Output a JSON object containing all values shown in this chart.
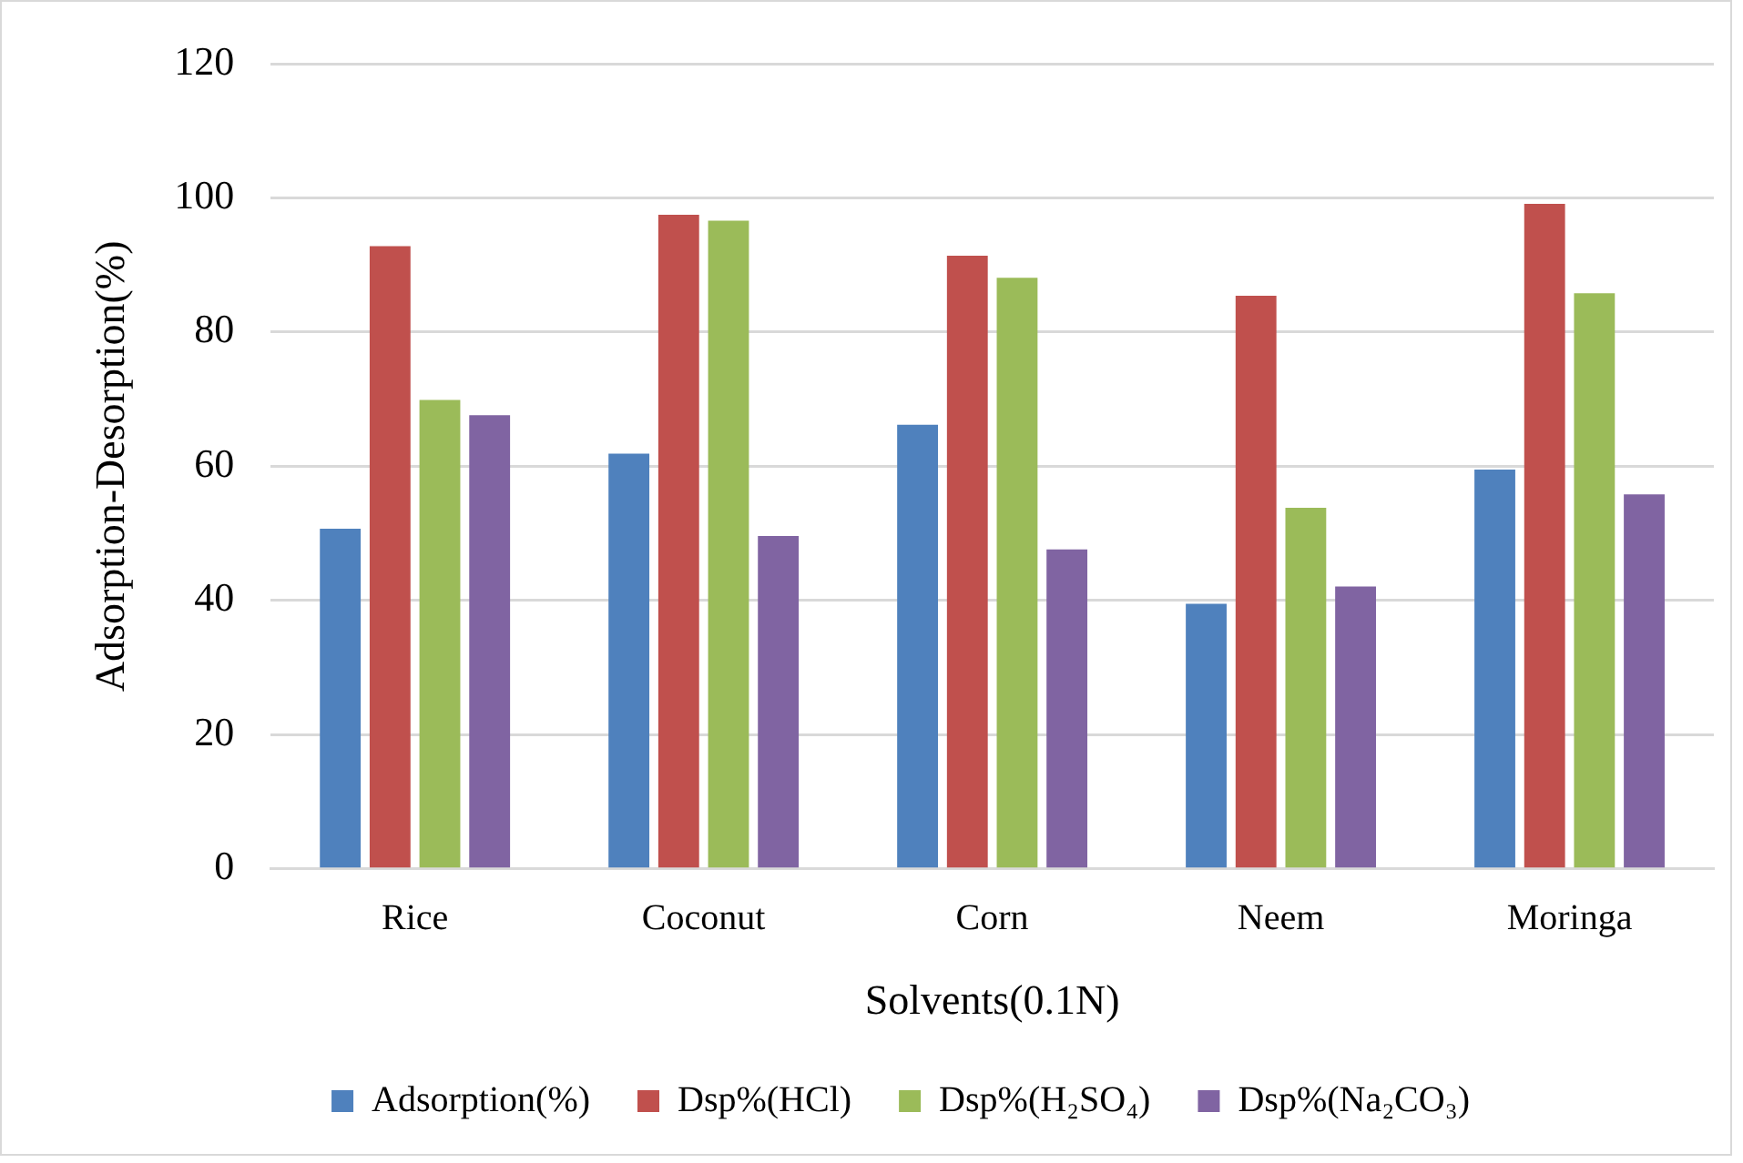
{
  "chart_data": {
    "type": "bar",
    "xlabel": "Solvents(0.1N)",
    "ylabel": "Adsorption-Desorption(%)",
    "categories": [
      "Rice",
      "Coconut",
      "Corn",
      "Neem",
      "Moringa"
    ],
    "series": [
      {
        "name": "Adsorption(%)",
        "color": "#4f81bd",
        "values": [
          50.7,
          61.9,
          66.2,
          39.5,
          59.5
        ]
      },
      {
        "name": "Dsp%(HCl)",
        "color": "#c0504d",
        "values": [
          92.8,
          97.5,
          91.4,
          85.4,
          99.1
        ]
      },
      {
        "name": "Dsp%(H₂SO₄)",
        "color": "#9bbb59",
        "values": [
          69.9,
          96.6,
          88.1,
          53.8,
          85.8
        ]
      },
      {
        "name": "Dsp%(Na₂CO₃)",
        "color": "#8064a2",
        "values": [
          67.6,
          49.6,
          47.6,
          42.1,
          55.8
        ]
      }
    ],
    "ylim": [
      0,
      120
    ],
    "yticks": [
      0,
      20,
      40,
      60,
      80,
      100,
      120
    ],
    "grid": "y",
    "legend": "bottom"
  }
}
